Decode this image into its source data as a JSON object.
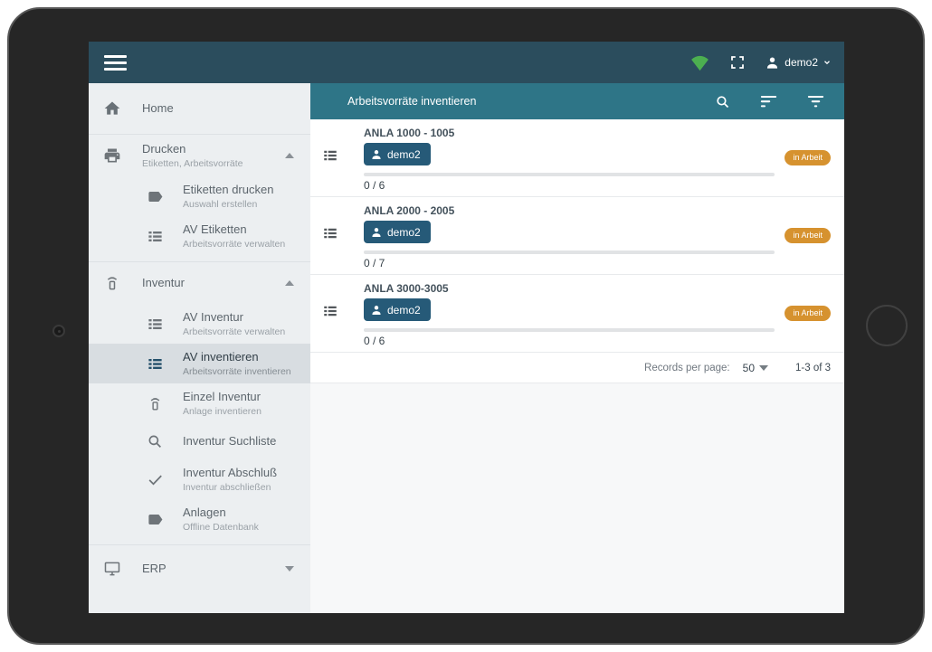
{
  "topbar": {
    "user": "demo2"
  },
  "sidebar": {
    "home": {
      "label": "Home"
    },
    "drucken": {
      "label": "Drucken",
      "subtitle": "Etiketten, Arbeitsvorräte",
      "children": [
        {
          "label": "Etiketten drucken",
          "subtitle": "Auswahl erstellen"
        },
        {
          "label": "AV Etiketten",
          "subtitle": "Arbeitsvorräte verwalten"
        }
      ]
    },
    "inventur": {
      "label": "Inventur",
      "children": [
        {
          "label": "AV Inventur",
          "subtitle": "Arbeitsvorräte verwalten"
        },
        {
          "label": "AV inventieren",
          "subtitle": "Arbeitsvorräte inventieren",
          "selected": true
        },
        {
          "label": "Einzel Inventur",
          "subtitle": "Anlage inventieren"
        },
        {
          "label": "Inventur Suchliste"
        },
        {
          "label": "Inventur Abschluß",
          "subtitle": "Inventur abschließen"
        },
        {
          "label": "Anlagen",
          "subtitle": "Offline Datenbank"
        }
      ]
    },
    "erp": {
      "label": "ERP"
    }
  },
  "content": {
    "header": {
      "title": "Arbeitsvorräte inventieren"
    },
    "rows": [
      {
        "title": "ANLA 1000 - 1005",
        "assignee": "demo2",
        "count": "0 / 6",
        "progress_percent": 0,
        "status": "in Arbeit"
      },
      {
        "title": "ANLA 2000 - 2005",
        "assignee": "demo2",
        "count": "0 / 7",
        "progress_percent": 0,
        "status": "in Arbeit"
      },
      {
        "title": "ANLA 3000-3005",
        "assignee": "demo2",
        "count": "0 / 6",
        "progress_percent": 0,
        "status": "in Arbeit"
      }
    ],
    "pagination": {
      "records_per_page_label": "Records per page:",
      "records_per_page_value": "50",
      "range_label": "1-3 of 3"
    }
  },
  "colors": {
    "topbar_bg": "#2b4d5d",
    "content_header_bg": "#2e7587",
    "wifi_green": "#4caf50",
    "chip_bg": "#265a78",
    "status_badge_bg": "#d6922f",
    "sidebar_bg": "#eceff1",
    "sidebar_selected_bg": "#d8dde1"
  }
}
